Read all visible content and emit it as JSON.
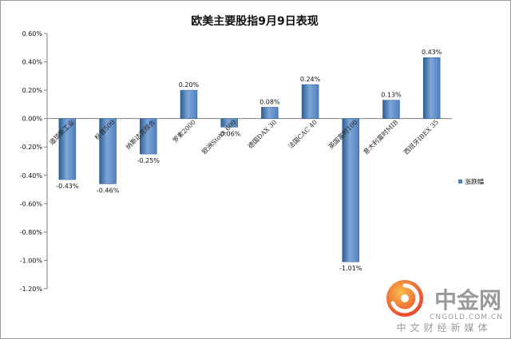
{
  "chart_data": {
    "type": "bar",
    "title": "欧美主要股指9月9日表现",
    "categories": [
      "道琼斯工业",
      "标普500",
      "纳斯达克综合",
      "罗素2000",
      "欧洲Stoxx 600",
      "德国DAX 30",
      "法国CAC 40",
      "英国富时100",
      "意大利富时MIB",
      "西班牙IBEX 35"
    ],
    "series": [
      {
        "name": "涨跌幅",
        "values": [
          -0.43,
          -0.46,
          -0.25,
          0.2,
          -0.06,
          0.08,
          0.24,
          -1.01,
          0.13,
          0.43
        ],
        "value_labels": [
          "-0.43%",
          "-0.46%",
          "-0.25%",
          "0.20%",
          "-0.06%",
          "0.08%",
          "0.24%",
          "-1.01%",
          "0.13%",
          "0.43%"
        ]
      }
    ],
    "yticks": [
      "0.60%",
      "0.40%",
      "0.20%",
      "0.00%",
      "-0.20%",
      "-0.40%",
      "-0.60%",
      "-0.80%",
      "-1.00%",
      "-1.20%"
    ],
    "ylim": [
      -1.2,
      0.6
    ],
    "xlabel": "",
    "ylabel": "",
    "legend_position": "right",
    "grid": false,
    "colors": {
      "bar": "#4f81bd",
      "bar_dark": "#2c5d8f",
      "bar_light": "#7ea6d8"
    }
  },
  "watermark": {
    "brand": "中金网",
    "url": "CNGOLD.COM.CN",
    "slogan": "中文财经新媒体",
    "colors": {
      "logo_red": "#e8402c",
      "logo_orange": "#f6a623",
      "text": "#9a9a9a"
    }
  }
}
